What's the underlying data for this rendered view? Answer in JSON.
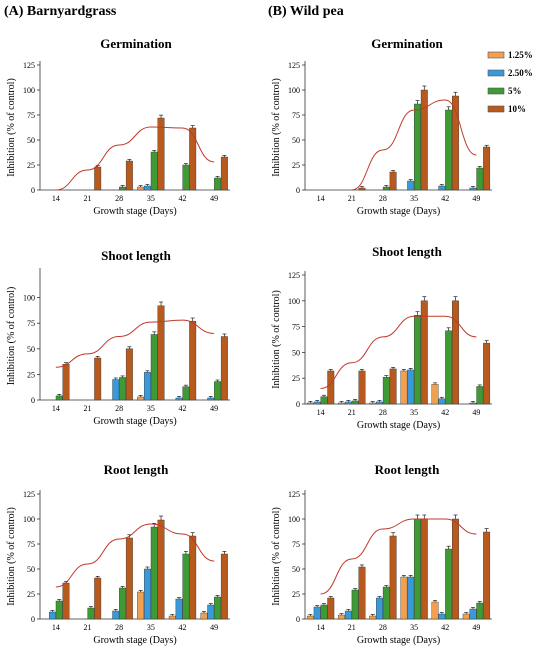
{
  "panel_a_heading": "(A) Barnyardgrass",
  "panel_b_heading": "(B) Wild pea",
  "legend": [
    {
      "label": "1.25%",
      "color": "#f0a050"
    },
    {
      "label": "2.50%",
      "color": "#3a9ad9"
    },
    {
      "label": "5%",
      "color": "#3e9a35"
    },
    {
      "label": "10%",
      "color": "#b85a1e"
    }
  ],
  "colors": {
    "trend": "#c0392b",
    "axis": "#333333",
    "errorbar": "#222222"
  },
  "chart_data": [
    {
      "type": "bar",
      "panel": "A",
      "title": "Germination",
      "xlabel": "Growth stage (Days)",
      "ylabel": "Inhibition (% of control)",
      "categories": [
        "14",
        "21",
        "28",
        "35",
        "42",
        "49"
      ],
      "yticks": [
        0,
        25,
        50,
        75,
        100,
        125
      ],
      "ylim": [
        0,
        125
      ],
      "series": [
        {
          "name": "1.25%",
          "values": [
            0,
            0,
            0,
            3,
            0,
            0
          ]
        },
        {
          "name": "2.50%",
          "values": [
            0,
            0,
            0,
            4,
            0,
            0
          ]
        },
        {
          "name": "5%",
          "values": [
            0,
            0,
            3,
            38,
            25,
            12
          ]
        },
        {
          "name": "10%",
          "values": [
            0,
            23,
            29,
            72,
            62,
            33
          ]
        }
      ],
      "trend": [
        [
          14,
          0
        ],
        [
          21,
          20
        ],
        [
          28,
          45
        ],
        [
          35,
          63
        ],
        [
          42,
          62
        ],
        [
          49,
          28
        ]
      ]
    },
    {
      "type": "bar",
      "panel": "B",
      "title": "Germination",
      "xlabel": "Growth stage (Days)",
      "ylabel": "Inhibition (% of control)",
      "categories": [
        "14",
        "21",
        "28",
        "35",
        "42",
        "49"
      ],
      "yticks": [
        0,
        25,
        50,
        75,
        100,
        125
      ],
      "ylim": [
        0,
        125
      ],
      "series": [
        {
          "name": "1.25%",
          "values": [
            0,
            0,
            0,
            0,
            0,
            0
          ]
        },
        {
          "name": "2.50%",
          "values": [
            0,
            0,
            0,
            9,
            4,
            2
          ]
        },
        {
          "name": "5%",
          "values": [
            0,
            0,
            3,
            86,
            80,
            22
          ]
        },
        {
          "name": "10%",
          "values": [
            0,
            2,
            18,
            100,
            94,
            43
          ]
        }
      ],
      "trend": [
        [
          21,
          0
        ],
        [
          28,
          40
        ],
        [
          35,
          80
        ],
        [
          42,
          90
        ],
        [
          49,
          35
        ]
      ]
    },
    {
      "type": "bar",
      "panel": "A",
      "title": "Shoot length",
      "xlabel": "Growth stage (Days)",
      "ylabel": "Inhibition (% of control)",
      "categories": [
        "14",
        "21",
        "28",
        "35",
        "42",
        "49"
      ],
      "yticks": [
        0,
        25,
        50,
        75,
        100
      ],
      "ylim": [
        0,
        125
      ],
      "series": [
        {
          "name": "1.25%",
          "values": [
            0,
            0,
            0,
            3,
            0,
            0
          ]
        },
        {
          "name": "2.50%",
          "values": [
            0,
            0,
            20,
            27,
            2,
            2
          ]
        },
        {
          "name": "5%",
          "values": [
            4,
            0,
            22,
            64,
            13,
            18
          ]
        },
        {
          "name": "10%",
          "values": [
            35,
            41,
            50,
            92,
            77,
            62
          ]
        }
      ],
      "trend": [
        [
          14,
          32
        ],
        [
          21,
          45
        ],
        [
          28,
          62
        ],
        [
          35,
          76
        ],
        [
          42,
          78
        ],
        [
          49,
          65
        ]
      ]
    },
    {
      "type": "bar",
      "panel": "B",
      "title": "Shoot length",
      "xlabel": "Growth stage (Days)",
      "ylabel": "Inhibition (% of control)",
      "categories": [
        "14",
        "21",
        "28",
        "35",
        "42",
        "49"
      ],
      "yticks": [
        0,
        25,
        50,
        75,
        100,
        125
      ],
      "ylim": [
        0,
        125
      ],
      "series": [
        {
          "name": "1.25%",
          "values": [
            1,
            1,
            1,
            32,
            19,
            0
          ]
        },
        {
          "name": "2.50%",
          "values": [
            2,
            2,
            2,
            33,
            5,
            1
          ]
        },
        {
          "name": "5%",
          "values": [
            7,
            3,
            26,
            86,
            71,
            17
          ]
        },
        {
          "name": "10%",
          "values": [
            32,
            32,
            34,
            100,
            100,
            59
          ]
        }
      ],
      "trend": [
        [
          14,
          15
        ],
        [
          21,
          40
        ],
        [
          28,
          65
        ],
        [
          35,
          85
        ],
        [
          42,
          85
        ],
        [
          49,
          65
        ]
      ]
    },
    {
      "type": "bar",
      "panel": "A",
      "title": "Root length",
      "xlabel": "Growth stage (Days)",
      "ylabel": "Inhibition (% of control)",
      "categories": [
        "14",
        "21",
        "28",
        "35",
        "42",
        "49"
      ],
      "yticks": [
        0,
        25,
        50,
        75,
        100,
        125
      ],
      "ylim": [
        0,
        125
      ],
      "series": [
        {
          "name": "1.25%",
          "values": [
            0,
            0,
            0,
            27,
            3,
            6
          ]
        },
        {
          "name": "2.50%",
          "values": [
            7,
            0,
            8,
            50,
            20,
            14
          ]
        },
        {
          "name": "5%",
          "values": [
            18,
            11,
            31,
            92,
            65,
            22
          ]
        },
        {
          "name": "10%",
          "values": [
            36,
            41,
            81,
            99,
            83,
            65
          ]
        }
      ],
      "trend": [
        [
          14,
          32
        ],
        [
          21,
          55
        ],
        [
          28,
          80
        ],
        [
          35,
          95
        ],
        [
          42,
          85
        ],
        [
          49,
          58
        ]
      ]
    },
    {
      "type": "bar",
      "panel": "B",
      "title": "Root length",
      "xlabel": "Growth stage (Days)",
      "ylabel": "Inhibition (% of control)",
      "categories": [
        "14",
        "21",
        "28",
        "35",
        "42",
        "49"
      ],
      "yticks": [
        0,
        25,
        50,
        75,
        100,
        125
      ],
      "ylim": [
        0,
        125
      ],
      "series": [
        {
          "name": "1.25%",
          "values": [
            3,
            4,
            3,
            42,
            17,
            5
          ]
        },
        {
          "name": "2.50%",
          "values": [
            12,
            8,
            21,
            42,
            5,
            10
          ]
        },
        {
          "name": "5%",
          "values": [
            14,
            29,
            32,
            100,
            70,
            16
          ]
        },
        {
          "name": "10%",
          "values": [
            21,
            52,
            83,
            100,
            100,
            87
          ]
        }
      ],
      "trend": [
        [
          14,
          25
        ],
        [
          21,
          60
        ],
        [
          28,
          90
        ],
        [
          35,
          100
        ],
        [
          42,
          100
        ],
        [
          49,
          85
        ]
      ]
    }
  ]
}
